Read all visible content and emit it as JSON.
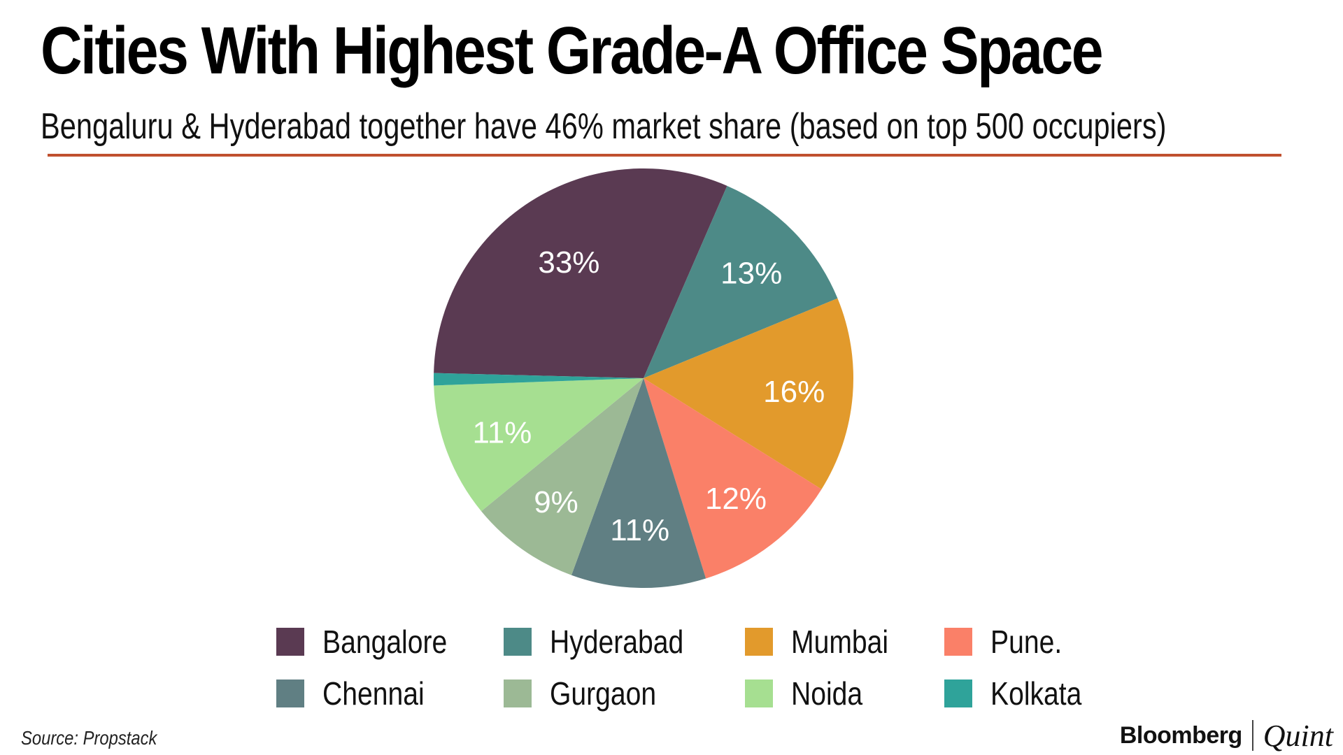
{
  "header": {
    "title": "Cities With Highest Grade-A Office Space",
    "subtitle": "Bengaluru & Hyderabad together have 46% market share (based on top 500 occupiers)"
  },
  "colors": {
    "rule": "#c0502f"
  },
  "chart_data": {
    "type": "pie",
    "title": "Cities With Highest Grade-A Office Space",
    "subtitle": "Bengaluru & Hyderabad together have 46% market share (based on top 500 occupiers)",
    "slices": [
      {
        "name": "Bangalore",
        "value": 33,
        "label": "33%",
        "color": "#5a3a52"
      },
      {
        "name": "Hyderabad",
        "value": 13,
        "label": "13%",
        "color": "#4d8a87"
      },
      {
        "name": "Mumbai",
        "value": 16,
        "label": "16%",
        "color": "#e29a2c"
      },
      {
        "name": "Pune.",
        "value": 12,
        "label": "12%",
        "color": "#fa8068"
      },
      {
        "name": "Chennai",
        "value": 11,
        "label": "11%",
        "color": "#607f83"
      },
      {
        "name": "Gurgaon",
        "value": 9,
        "label": "9%",
        "color": "#9cb995"
      },
      {
        "name": "Noida",
        "value": 11,
        "label": "11%",
        "color": "#a6df91"
      },
      {
        "name": "Kolkata",
        "value": 1,
        "label": "",
        "color": "#2fa39a"
      }
    ],
    "legend_position": "bottom"
  },
  "footer": {
    "source": "Source: Propstack",
    "brand_left": "Bloomberg",
    "brand_right": "Quint"
  }
}
